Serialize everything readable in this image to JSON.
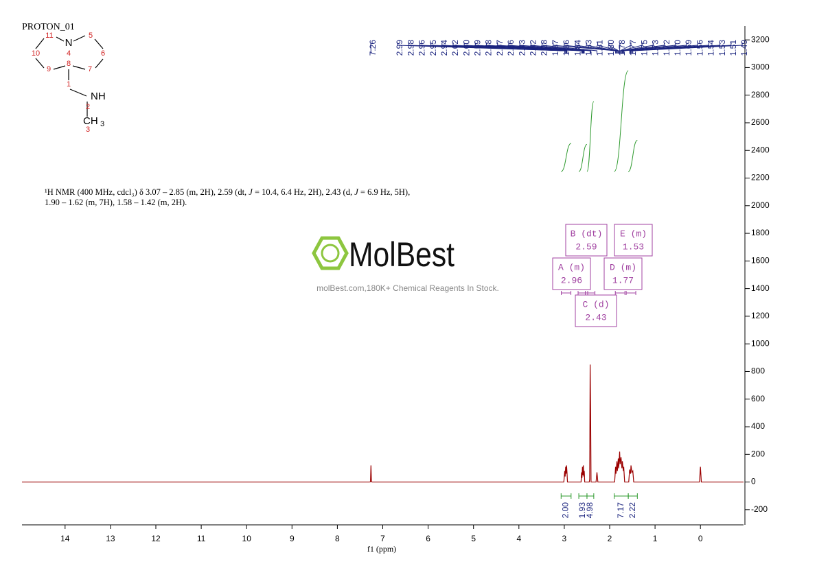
{
  "chart_data": {
    "type": "spectrum",
    "title": "PROTON_01",
    "xlabel": "f1 (ppm)",
    "xlim": [
      14.95,
      -0.95
    ],
    "xticks": [
      14,
      13,
      12,
      11,
      10,
      9,
      8,
      7,
      6,
      5,
      4,
      3,
      2,
      1,
      0
    ],
    "ylim": [
      -310,
      3300
    ],
    "yticks": [
      -200,
      0,
      200,
      400,
      600,
      800,
      1000,
      1200,
      1400,
      1600,
      1800,
      2000,
      2200,
      2400,
      2600,
      2800,
      3000,
      3200
    ],
    "color": "#9b0000",
    "x": [
      14.95,
      7.29,
      7.27,
      7.26,
      7.25,
      7.23,
      3.01,
      2.99,
      2.98,
      2.97,
      2.96,
      2.95,
      2.94,
      2.93,
      2.63,
      2.62,
      2.61,
      2.6,
      2.59,
      2.58,
      2.57,
      2.56,
      2.55,
      2.45,
      2.44,
      2.43,
      2.42,
      2.41,
      2.3,
      2.28,
      2.26,
      1.89,
      1.87,
      1.86,
      1.84,
      1.83,
      1.81,
      1.8,
      1.78,
      1.77,
      1.75,
      1.73,
      1.72,
      1.7,
      1.69,
      1.67,
      1.58,
      1.56,
      1.54,
      1.53,
      1.51,
      1.49,
      1.47,
      0.02,
      0,
      -0.02,
      -0.95
    ],
    "values": [
      0,
      0,
      2,
      120,
      2,
      0,
      0,
      80,
      40,
      110,
      60,
      120,
      70,
      0,
      0,
      70,
      30,
      110,
      50,
      120,
      40,
      80,
      0,
      0,
      20,
      850,
      530,
      0,
      0,
      70,
      0,
      0,
      110,
      60,
      150,
      80,
      170,
      100,
      220,
      130,
      180,
      100,
      150,
      80,
      110,
      0,
      0,
      90,
      60,
      120,
      70,
      80,
      0,
      0,
      110,
      0,
      0
    ],
    "peak_labels": [
      7.26,
      2.99,
      2.98,
      2.96,
      2.95,
      2.94,
      2.62,
      {
        "value": 2.6,
        "label": "2.60"
      },
      2.59,
      2.58,
      2.57,
      2.56,
      2.43,
      2.42,
      2.28,
      1.87,
      1.86,
      1.84,
      1.83,
      1.81,
      {
        "value": 1.8,
        "label": "1.80"
      },
      1.78,
      1.77,
      1.75,
      1.73,
      1.72,
      {
        "value": 1.7,
        "label": "1.70"
      },
      1.69,
      1.56,
      1.54,
      1.53,
      1.51,
      1.49
    ],
    "integral_color": "#2e9a2e",
    "integrals": {
      "ranges": [
        [
          3.07,
          2.85
        ],
        [
          2.68,
          2.5
        ],
        [
          2.5,
          2.35
        ],
        [
          1.9,
          1.59
        ],
        [
          1.59,
          1.39
        ]
      ],
      "values": [
        2,
        1.93,
        4.98,
        7.17,
        2.22
      ],
      "value_labels": [
        "2.00",
        "1.93",
        "4.98",
        "7.17",
        "2.22"
      ]
    },
    "multiplets": [
      {
        "label": "A (m)",
        "shift": 2.96
      },
      {
        "label": "B (dt)",
        "shift": 2.59
      },
      {
        "label": "C (d)",
        "shift": 2.43
      },
      {
        "label": "D (m)",
        "shift": 1.77
      },
      {
        "label": "E (m)",
        "shift": 1.53
      }
    ],
    "description": [
      "¹H NMR (400 MHz, cdcl₃) δ 3.07 – 2.85 (m, 2H), 2.59 (dt, ",
      "J",
      " = 10.4, 6.4 Hz, 2H), 2.43 (d, ",
      "J",
      " = 6.9 Hz, 5H), 1.90 – 1.62 (m, 7H), 1.58 – 1.42 (m, 2H)."
    ],
    "structure": {
      "atoms": [
        "N",
        "NH",
        "CH"
      ],
      "methyl_subscript": "3",
      "atom_numbers": [
        11,
        5,
        10,
        4,
        6,
        8,
        9,
        7,
        1,
        2,
        3
      ]
    },
    "watermark": {
      "brand": "MolBest",
      "tagline": "molBest.com,180K+ Chemical Reagents In Stock."
    }
  }
}
